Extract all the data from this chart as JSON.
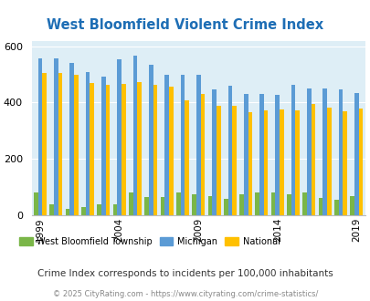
{
  "title": "West Bloomfield Violent Crime Index",
  "years": [
    1999,
    2000,
    2001,
    2002,
    2003,
    2004,
    2005,
    2006,
    2007,
    2008,
    2009,
    2010,
    2011,
    2012,
    2013,
    2014,
    2015,
    2016,
    2017,
    2018,
    2019
  ],
  "west_bloomfield": [
    80,
    40,
    22,
    28,
    38,
    38,
    80,
    65,
    65,
    82,
    75,
    67,
    57,
    75,
    82,
    82,
    75,
    80,
    62,
    55,
    68
  ],
  "michigan": [
    558,
    558,
    540,
    510,
    492,
    555,
    568,
    535,
    500,
    498,
    500,
    447,
    460,
    430,
    430,
    428,
    462,
    450,
    450,
    448,
    435
  ],
  "national": [
    505,
    505,
    500,
    468,
    463,
    465,
    473,
    463,
    455,
    408,
    430,
    390,
    388,
    365,
    373,
    375,
    373,
    395,
    383,
    369,
    380
  ],
  "color_west": "#7ab648",
  "color_michigan": "#5b9bd5",
  "color_national": "#ffc000",
  "bg_color": "#deeef6",
  "ylim": [
    0,
    620
  ],
  "yticks": [
    0,
    200,
    400,
    600
  ],
  "subtitle": "Crime Index corresponds to incidents per 100,000 inhabitants",
  "footer": "© 2025 CityRating.com - https://www.cityrating.com/crime-statistics/",
  "legend_labels": [
    "West Bloomfield Township",
    "Michigan",
    "National"
  ],
  "tick_years": [
    1999,
    2004,
    2009,
    2014,
    2019
  ]
}
